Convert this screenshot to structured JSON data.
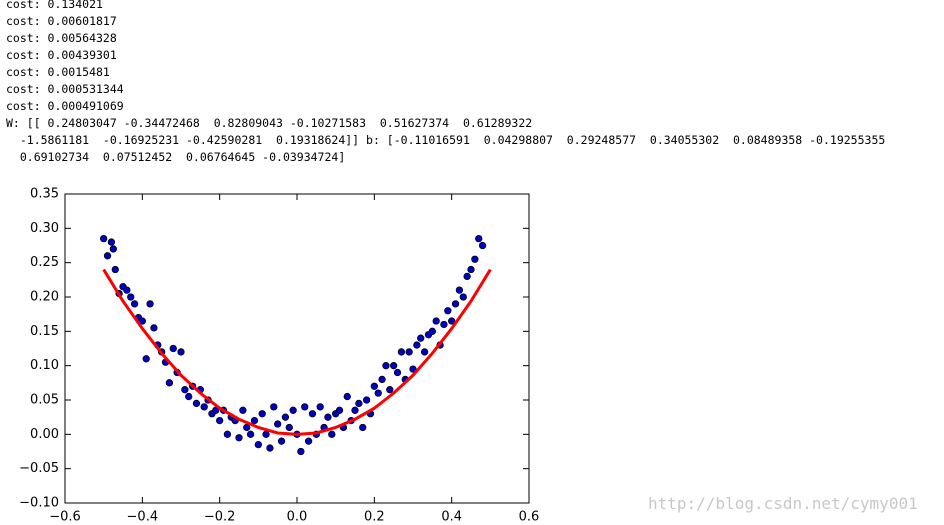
{
  "output_lines": [
    "cost: 0.134021",
    "cost: 0.00601817",
    "cost: 0.00564328",
    "cost: 0.00439301",
    "cost: 0.0015481",
    "cost: 0.000531344",
    "cost: 0.000491069",
    "W: [[ 0.24803047 -0.34472468  0.82809043 -0.10271583  0.51627374  0.61289322",
    "  -1.5861181  -0.16925231 -0.42590281  0.19318624]] b: [-0.11016591  0.04298807  0.29248577  0.34055302  0.08489358 -0.19255355",
    "  0.69102734  0.07512452  0.06764645 -0.03934724]"
  ],
  "watermark": "http://blog.csdn.net/cymy001",
  "chart_data": {
    "type": "scatter",
    "xlim": [
      -0.6,
      0.6
    ],
    "xticks": [
      {
        "value": -0.6,
        "label": "−0.6"
      },
      {
        "value": -0.4,
        "label": "−0.4"
      },
      {
        "value": -0.2,
        "label": "−0.2"
      },
      {
        "value": 0,
        "label": "0.0"
      },
      0.2,
      0.4,
      0.6
    ],
    "ylim": [
      -0.1,
      0.35
    ],
    "yticks": [
      {
        "value": -0.1,
        "label": "−0.10"
      },
      {
        "value": -0.05,
        "label": "−0.05"
      },
      {
        "value": 0,
        "label": "0.00"
      },
      0.05,
      {
        "value": 0.1,
        "label": "0.10"
      },
      0.15,
      {
        "value": 0.2,
        "label": "0.20"
      },
      0.25,
      {
        "value": 0.3,
        "label": "0.30"
      },
      0.35
    ],
    "series": [
      {
        "type": "scatter",
        "color": "#0000bf",
        "x": [
          -0.5,
          -0.49,
          -0.48,
          -0.475,
          -0.47,
          -0.46,
          -0.45,
          -0.44,
          -0.43,
          -0.42,
          -0.41,
          -0.4,
          -0.39,
          -0.38,
          -0.37,
          -0.36,
          -0.35,
          -0.34,
          -0.33,
          -0.32,
          -0.31,
          -0.3,
          -0.29,
          -0.28,
          -0.27,
          -0.26,
          -0.25,
          -0.24,
          -0.23,
          -0.22,
          -0.21,
          -0.2,
          -0.19,
          -0.18,
          -0.17,
          -0.16,
          -0.15,
          -0.14,
          -0.13,
          -0.12,
          -0.11,
          -0.1,
          -0.09,
          -0.08,
          -0.07,
          -0.06,
          -0.05,
          -0.04,
          -0.03,
          -0.02,
          -0.01,
          0,
          0.01,
          0.02,
          0.03,
          0.04,
          0.05,
          0.06,
          0.07,
          0.08,
          0.09,
          0.1,
          0.11,
          0.12,
          0.13,
          0.14,
          0.15,
          0.16,
          0.17,
          0.18,
          0.19,
          0.2,
          0.21,
          0.22,
          0.23,
          0.24,
          0.25,
          0.26,
          0.27,
          0.28,
          0.29,
          0.3,
          0.31,
          0.32,
          0.33,
          0.34,
          0.35,
          0.36,
          0.37,
          0.38,
          0.39,
          0.4,
          0.41,
          0.42,
          0.43,
          0.44,
          0.45,
          0.46,
          0.47,
          0.48
        ],
        "values": [
          0.285,
          0.26,
          0.28,
          0.27,
          0.24,
          0.205,
          0.215,
          0.21,
          0.2,
          0.19,
          0.17,
          0.165,
          0.11,
          0.19,
          0.155,
          0.13,
          0.12,
          0.105,
          0.075,
          0.125,
          0.09,
          0.12,
          0.065,
          0.055,
          0.07,
          0.045,
          0.065,
          0.04,
          0.05,
          0.03,
          0.035,
          0.02,
          0.035,
          0,
          0.025,
          0.02,
          -0.005,
          0.035,
          0.01,
          0,
          0.02,
          -0.015,
          0.03,
          0,
          -0.02,
          0.04,
          0.015,
          -0.01,
          0.025,
          0.01,
          0.035,
          0,
          -0.025,
          0.04,
          -0.01,
          0.03,
          0,
          0.04,
          0.01,
          0.025,
          0,
          0.03,
          0.035,
          0.01,
          0.055,
          0.02,
          0.035,
          0.045,
          0.01,
          0.05,
          0.03,
          0.07,
          0.06,
          0.08,
          0.1,
          0.065,
          0.1,
          0.09,
          0.12,
          0.08,
          0.12,
          0.095,
          0.13,
          0.14,
          0.12,
          0.145,
          0.15,
          0.165,
          0.13,
          0.16,
          0.18,
          0.165,
          0.19,
          0.21,
          0.2,
          0.23,
          0.24,
          0.255,
          0.285,
          0.275
        ]
      },
      {
        "type": "line",
        "color": "#ff0000",
        "x": [
          -0.5,
          -0.45,
          -0.4,
          -0.35,
          -0.3,
          -0.25,
          -0.2,
          -0.15,
          -0.1,
          -0.05,
          0,
          0.05,
          0.1,
          0.15,
          0.2,
          0.25,
          0.3,
          0.35,
          0.4,
          0.45,
          0.5
        ],
        "values": [
          0.24,
          0.194,
          0.154,
          0.118,
          0.086,
          0.06,
          0.038,
          0.022,
          0.01,
          0.002,
          0,
          0.002,
          0.01,
          0.022,
          0.038,
          0.06,
          0.086,
          0.118,
          0.154,
          0.194,
          0.24
        ]
      }
    ]
  }
}
